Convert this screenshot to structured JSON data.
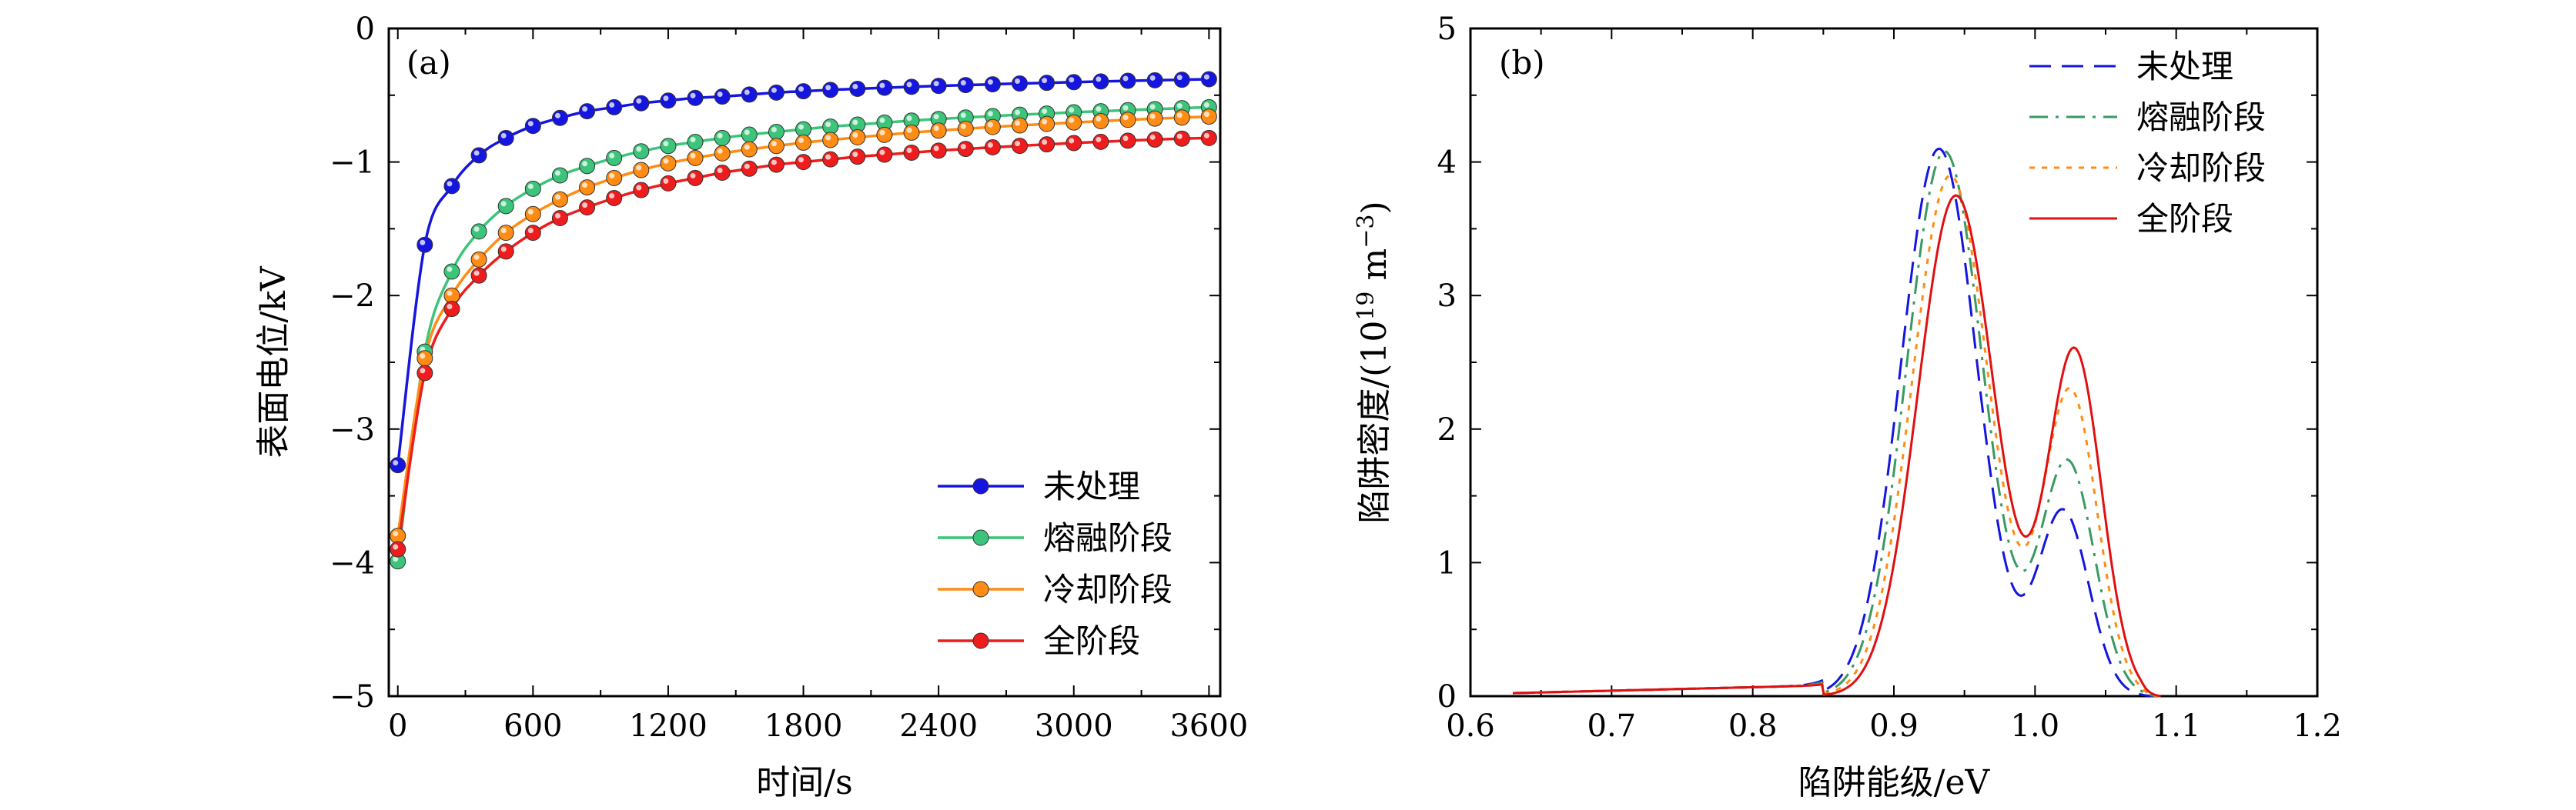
{
  "chart_data": [
    {
      "type": "line",
      "panel_label": "(a)",
      "xlabel": "时间/s",
      "ylabel": "表面电位/kV",
      "xlim": [
        -40,
        3650
      ],
      "ylim": [
        -5,
        0
      ],
      "xticks": [
        0,
        600,
        1200,
        1800,
        2400,
        3000,
        3600
      ],
      "xtick_labels": [
        "0",
        "600",
        "1200",
        "1800",
        "2400",
        "3000",
        "3600"
      ],
      "yticks": [
        0,
        -1,
        -2,
        -3,
        -4,
        -5
      ],
      "ytick_labels": [
        "0",
        "−1",
        "−2",
        "−3",
        "−4",
        "−5"
      ],
      "legend_position": "bottom-right",
      "x": [
        0,
        120,
        240,
        360,
        480,
        600,
        720,
        840,
        960,
        1080,
        1200,
        1320,
        1440,
        1560,
        1680,
        1800,
        1920,
        2040,
        2160,
        2280,
        2400,
        2520,
        2640,
        2760,
        2880,
        3000,
        3120,
        3240,
        3360,
        3480,
        3600
      ],
      "series": [
        {
          "name": "未处理",
          "color": "#1515e0",
          "values": [
            -3.27,
            -1.62,
            -1.18,
            -0.95,
            -0.82,
            -0.73,
            -0.67,
            -0.62,
            -0.59,
            -0.56,
            -0.54,
            -0.52,
            -0.51,
            -0.495,
            -0.48,
            -0.47,
            -0.46,
            -0.452,
            -0.444,
            -0.437,
            -0.43,
            -0.424,
            -0.418,
            -0.412,
            -0.407,
            -0.402,
            -0.397,
            -0.392,
            -0.388,
            -0.384,
            -0.38
          ]
        },
        {
          "name": "熔融阶段",
          "color": "#3cc47a",
          "values": [
            -3.99,
            -2.42,
            -1.82,
            -1.52,
            -1.33,
            -1.2,
            -1.1,
            -1.03,
            -0.97,
            -0.92,
            -0.88,
            -0.85,
            -0.82,
            -0.795,
            -0.775,
            -0.755,
            -0.735,
            -0.72,
            -0.705,
            -0.69,
            -0.678,
            -0.667,
            -0.656,
            -0.646,
            -0.637,
            -0.628,
            -0.62,
            -0.612,
            -0.604,
            -0.597,
            -0.59
          ]
        },
        {
          "name": "冷却阶段",
          "color": "#ff8c14",
          "values": [
            -3.8,
            -2.47,
            -2.0,
            -1.73,
            -1.53,
            -1.39,
            -1.28,
            -1.19,
            -1.12,
            -1.06,
            -1.01,
            -0.97,
            -0.935,
            -0.905,
            -0.88,
            -0.855,
            -0.835,
            -0.815,
            -0.797,
            -0.78,
            -0.765,
            -0.751,
            -0.738,
            -0.726,
            -0.715,
            -0.704,
            -0.694,
            -0.684,
            -0.675,
            -0.667,
            -0.66
          ]
        },
        {
          "name": "全阶段",
          "color": "#ee1c1c",
          "values": [
            -3.9,
            -2.58,
            -2.1,
            -1.85,
            -1.67,
            -1.53,
            -1.42,
            -1.34,
            -1.27,
            -1.21,
            -1.16,
            -1.12,
            -1.08,
            -1.05,
            -1.02,
            -1.0,
            -0.98,
            -0.96,
            -0.945,
            -0.93,
            -0.915,
            -0.902,
            -0.89,
            -0.879,
            -0.868,
            -0.858,
            -0.849,
            -0.84,
            -0.832,
            -0.825,
            -0.82
          ]
        }
      ]
    },
    {
      "type": "line",
      "panel_label": "(b)",
      "xlabel": "陷阱能级/eV",
      "ylabel": "陷阱密度/(10",
      "ylabel_superscript": "19",
      "ylabel_suffix": " m",
      "ylabel_suffix_superscript": "−3",
      "ylabel_close": ")",
      "xlim": [
        0.6,
        1.2
      ],
      "ylim": [
        0,
        5
      ],
      "xticks": [
        0.6,
        0.7,
        0.8,
        0.9,
        1.0,
        1.1,
        1.2
      ],
      "xtick_labels": [
        "0.6",
        "0.7",
        "0.8",
        "0.9",
        "1.0",
        "1.1",
        "1.2"
      ],
      "yticks": [
        0,
        1,
        2,
        3,
        4,
        5
      ],
      "ytick_labels": [
        "0",
        "1",
        "2",
        "3",
        "4",
        "5"
      ],
      "legend_position": "top-right",
      "series": [
        {
          "name": "未处理",
          "color": "#1515e0",
          "dash": "dashed",
          "peaks": [
            {
              "mu": 0.932,
              "sigma": 0.027,
              "amp": 4.1
            },
            {
              "mu": 1.02,
              "sigma": 0.018,
              "amp": 1.38
            }
          ]
        },
        {
          "name": "熔融阶段",
          "color": "#3a9a62",
          "dash": "dashdot",
          "peaks": [
            {
              "mu": 0.936,
              "sigma": 0.027,
              "amp": 4.08
            },
            {
              "mu": 1.023,
              "sigma": 0.019,
              "amp": 1.75
            }
          ]
        },
        {
          "name": "冷却阶段",
          "color": "#ff8c14",
          "dash": "dotted",
          "peaks": [
            {
              "mu": 0.94,
              "sigma": 0.027,
              "amp": 3.9
            },
            {
              "mu": 1.025,
              "sigma": 0.019,
              "amp": 2.28
            }
          ]
        },
        {
          "name": "全阶段",
          "color": "#e01010",
          "dash": "solid",
          "peaks": [
            {
              "mu": 0.944,
              "sigma": 0.027,
              "amp": 3.75
            },
            {
              "mu": 1.028,
              "sigma": 0.019,
              "amp": 2.58
            }
          ]
        }
      ]
    }
  ]
}
